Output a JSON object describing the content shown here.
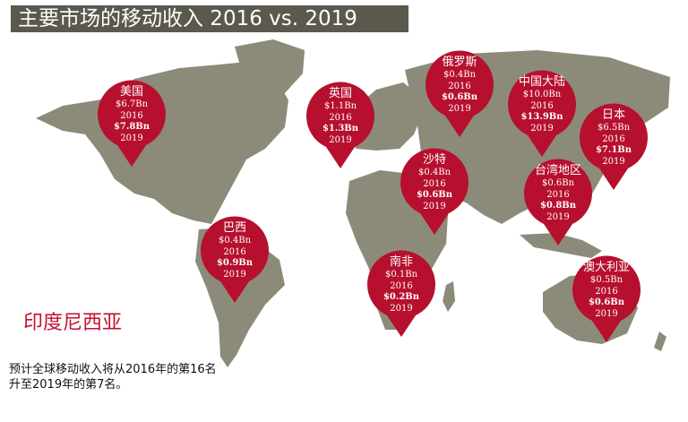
{
  "title": "主要市场的移动收入  2016 vs. 2019",
  "colors": {
    "map": "#8c8b7a",
    "pin": "#b6102e",
    "pin_dark": "#7d0a1e",
    "title_bg": "#5b594d",
    "accent_text": "#c5102f"
  },
  "markets": [
    {
      "name": "美国",
      "v2016": "$6.7Bn",
      "y2016": "2016",
      "v2019": "$7.8Bn",
      "y2019": "2019"
    },
    {
      "name": "英国",
      "v2016": "$1.1Bn",
      "y2016": "2016",
      "v2019": "$1.3Bn",
      "y2019": "2019"
    },
    {
      "name": "俄罗斯",
      "v2016": "$0.4Bn",
      "y2016": "2016",
      "v2019": "$0.6Bn",
      "y2019": "2019"
    },
    {
      "name": "中国大陆",
      "v2016": "$10.0Bn",
      "y2016": "2016",
      "v2019": "$13.9Bn",
      "y2019": "2019"
    },
    {
      "name": "日本",
      "v2016": "$6.5Bn",
      "y2016": "2016",
      "v2019": "$7.1Bn",
      "y2019": "2019"
    },
    {
      "name": "沙特",
      "v2016": "$0.4Bn",
      "y2016": "2016",
      "v2019": "$0.6Bn",
      "y2019": "2019"
    },
    {
      "name": "台湾地区",
      "v2016": "$0.6Bn",
      "y2016": "2016",
      "v2019": "$0.8Bn",
      "y2019": "2019"
    },
    {
      "name": "巴西",
      "v2016": "$0.4Bn",
      "y2016": "2016",
      "v2019": "$0.9Bn",
      "y2019": "2019"
    },
    {
      "name": "南非",
      "v2016": "$0.1Bn",
      "y2016": "2016",
      "v2019": "$0.2Bn",
      "y2019": "2019"
    },
    {
      "name": "澳大利亚",
      "v2016": "$0.5Bn",
      "y2016": "2016",
      "v2019": "$0.6Bn",
      "y2019": "2019"
    }
  ],
  "highlight_market": "印度尼西亚",
  "footnote": "预计全球移动收入将从2016年的第16名升至2019年的第7名。"
}
